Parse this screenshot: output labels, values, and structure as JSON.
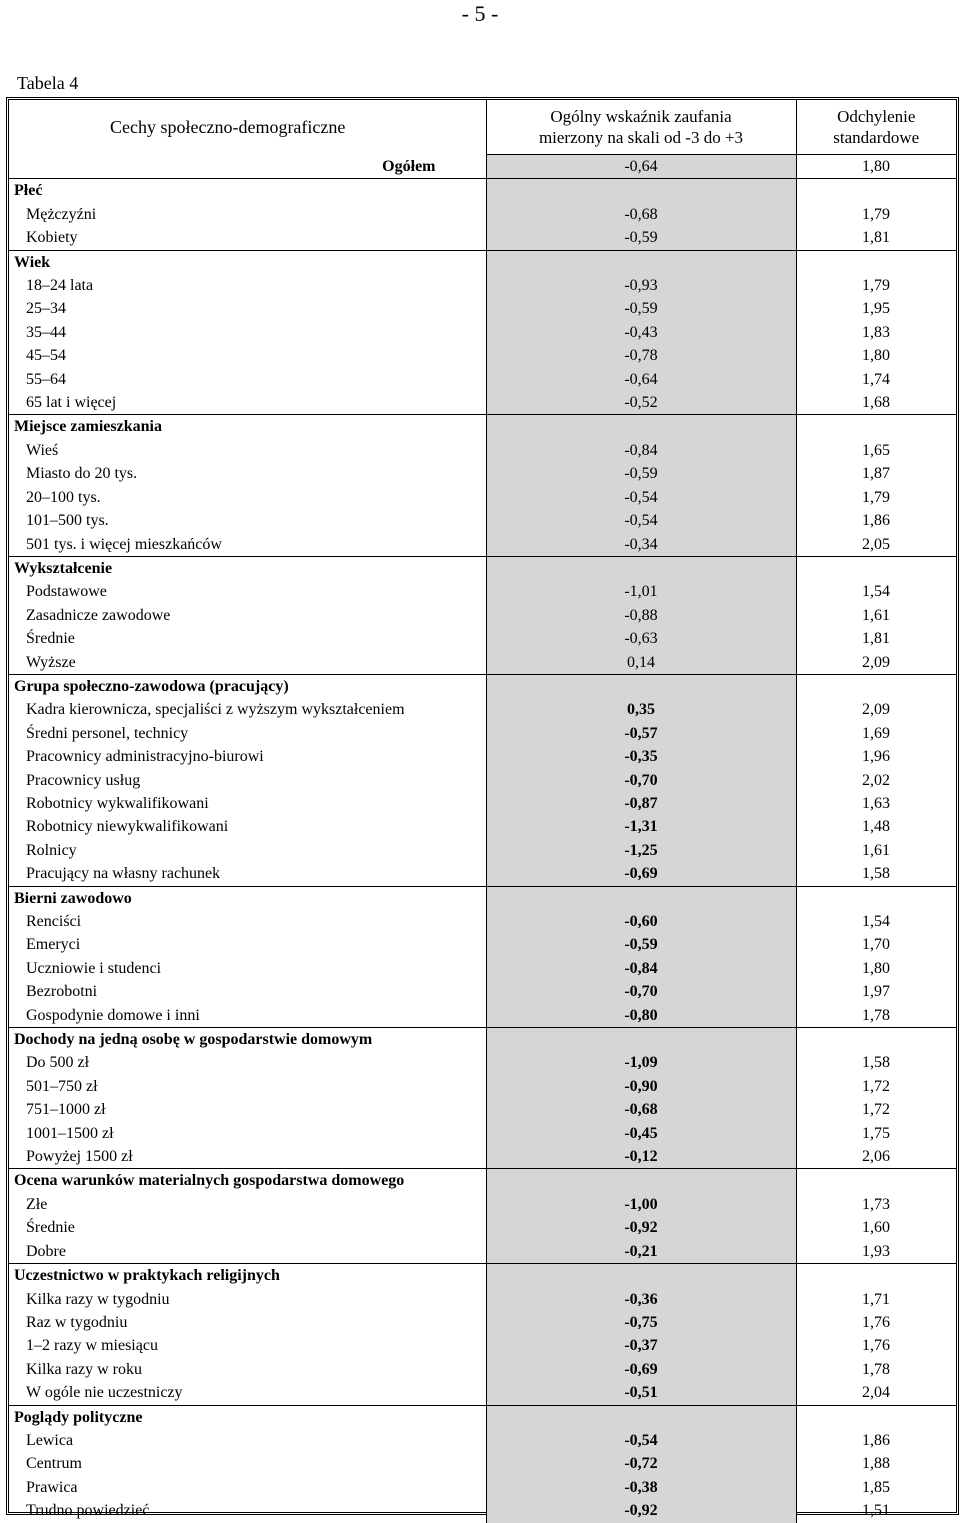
{
  "page_number": "- 5 -",
  "caption": "Tabela 4",
  "header": {
    "col1": "Cechy społeczno-demograficzne",
    "col2_line1": "Ogólny wskaźnik zaufania",
    "col2_line2": "mierzony na skali od -3 do +3",
    "col3_line1": "Odchylenie",
    "col3_line2": "standardowe"
  },
  "total": {
    "label": "Ogółem",
    "value": "-0,64",
    "sd": "1,80"
  },
  "sections": [
    {
      "title": "Płeć",
      "rows": [
        {
          "label": "Mężczyźni",
          "value": "-0,68",
          "sd": "1,79"
        },
        {
          "label": "Kobiety",
          "value": "-0,59",
          "sd": "1,81"
        }
      ]
    },
    {
      "title": "Wiek",
      "rows": [
        {
          "label": "18–24 lata",
          "value": "-0,93",
          "sd": "1,79"
        },
        {
          "label": "25–34",
          "value": "-0,59",
          "sd": "1,95"
        },
        {
          "label": "35–44",
          "value": "-0,43",
          "sd": "1,83"
        },
        {
          "label": "45–54",
          "value": "-0,78",
          "sd": "1,80"
        },
        {
          "label": "55–64",
          "value": "-0,64",
          "sd": "1,74"
        },
        {
          "label": "65 lat i więcej",
          "value": "-0,52",
          "sd": "1,68"
        }
      ]
    },
    {
      "title": "Miejsce zamieszkania",
      "rows": [
        {
          "label": "Wieś",
          "value": "-0,84",
          "sd": "1,65"
        },
        {
          "label": "Miasto do 20 tys.",
          "value": "-0,59",
          "sd": "1,87"
        },
        {
          "label": "20–100 tys.",
          "value": "-0,54",
          "sd": "1,79"
        },
        {
          "label": "101–500 tys.",
          "value": "-0,54",
          "sd": "1,86"
        },
        {
          "label": "501 tys. i więcej mieszkańców",
          "value": "-0,34",
          "sd": "2,05"
        }
      ]
    },
    {
      "title": "Wykształcenie",
      "rows": [
        {
          "label": "Podstawowe",
          "value": "-1,01",
          "sd": "1,54"
        },
        {
          "label": "Zasadnicze zawodowe",
          "value": "-0,88",
          "sd": "1,61"
        },
        {
          "label": "Średnie",
          "value": "-0,63",
          "sd": "1,81"
        },
        {
          "label": "Wyższe",
          "value": "0,14",
          "sd": "2,09"
        }
      ]
    },
    {
      "title": "Grupa społeczno-zawodowa (pracujący)",
      "rows": [
        {
          "label": "Kadra kierownicza, specjaliści z wyższym wykształceniem",
          "value": "0,35",
          "sd": "2,09"
        },
        {
          "label": "Średni personel, technicy",
          "value": "-0,57",
          "sd": "1,69"
        },
        {
          "label": "Pracownicy administracyjno-biurowi",
          "value": "-0,35",
          "sd": "1,96"
        },
        {
          "label": "Pracownicy usług",
          "value": "-0,70",
          "sd": "2,02"
        },
        {
          "label": "Robotnicy wykwalifikowani",
          "value": "-0,87",
          "sd": "1,63"
        },
        {
          "label": "Robotnicy niewykwalifikowani",
          "value": "-1,31",
          "sd": "1,48"
        },
        {
          "label": "Rolnicy",
          "value": "-1,25",
          "sd": "1,61"
        },
        {
          "label": "Pracujący na własny rachunek",
          "value": "-0,69",
          "sd": "1,58"
        }
      ]
    },
    {
      "title": "Bierni zawodowo",
      "rows": [
        {
          "label": "Renciści",
          "value": "-0,60",
          "sd": "1,54"
        },
        {
          "label": "Emeryci",
          "value": "-0,59",
          "sd": "1,70"
        },
        {
          "label": "Uczniowie i studenci",
          "value": "-0,84",
          "sd": "1,80"
        },
        {
          "label": "Bezrobotni",
          "value": "-0,70",
          "sd": "1,97"
        },
        {
          "label": "Gospodynie domowe i inni",
          "value": "-0,80",
          "sd": "1,78"
        }
      ]
    },
    {
      "title": "Dochody na jedną osobę w gospodarstwie domowym",
      "rows": [
        {
          "label": "Do 500 zł",
          "value": "-1,09",
          "sd": "1,58"
        },
        {
          "label": "501–750 zł",
          "value": "-0,90",
          "sd": "1,72"
        },
        {
          "label": "751–1000 zł",
          "value": "-0,68",
          "sd": "1,72"
        },
        {
          "label": "1001–1500 zł",
          "value": "-0,45",
          "sd": "1,75"
        },
        {
          "label": "Powyżej 1500 zł",
          "value": "-0,12",
          "sd": "2,06"
        }
      ]
    },
    {
      "title": "Ocena warunków materialnych gospodarstwa domowego",
      "rows": [
        {
          "label": "Złe",
          "value": "-1,00",
          "sd": "1,73"
        },
        {
          "label": "Średnie",
          "value": "-0,92",
          "sd": "1,60"
        },
        {
          "label": "Dobre",
          "value": "-0,21",
          "sd": "1,93"
        }
      ]
    },
    {
      "title": "Uczestnictwo w praktykach religijnych",
      "rows": [
        {
          "label": "Kilka razy w tygodniu",
          "value": "-0,36",
          "sd": "1,71"
        },
        {
          "label": "Raz w tygodniu",
          "value": "-0,75",
          "sd": "1,76"
        },
        {
          "label": "1–2 razy w miesiącu",
          "value": "-0,37",
          "sd": "1,76"
        },
        {
          "label": "Kilka razy w roku",
          "value": "-0,69",
          "sd": "1,78"
        },
        {
          "label": "W ogóle nie uczestniczy",
          "value": "-0,51",
          "sd": "2,04"
        }
      ]
    },
    {
      "title": "Poglądy polityczne",
      "rows": [
        {
          "label": "Lewica",
          "value": "-0,54",
          "sd": "1,86"
        },
        {
          "label": "Centrum",
          "value": "-0,72",
          "sd": "1,88"
        },
        {
          "label": "Prawica",
          "value": "-0,38",
          "sd": "1,85"
        },
        {
          "label": "Trudno powiedzieć",
          "value": "-0,92",
          "sd": "1,51"
        }
      ]
    }
  ]
}
